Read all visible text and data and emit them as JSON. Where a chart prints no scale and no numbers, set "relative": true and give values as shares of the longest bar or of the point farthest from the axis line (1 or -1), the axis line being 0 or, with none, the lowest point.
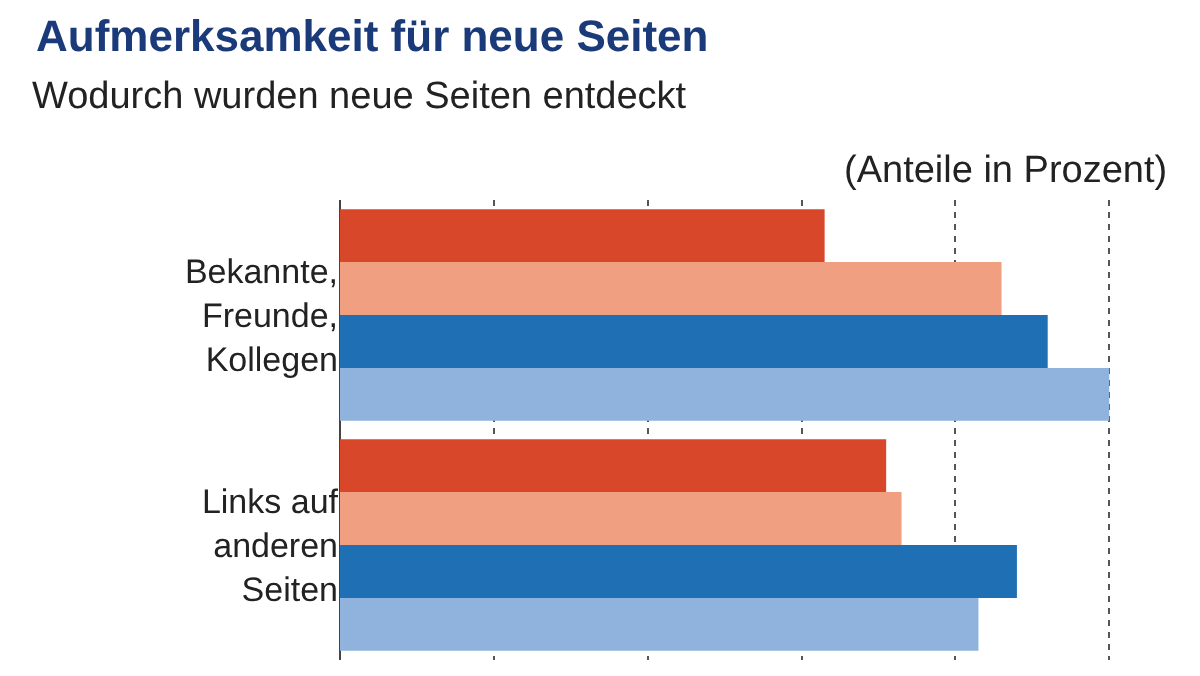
{
  "chart_data": {
    "type": "bar",
    "orientation": "horizontal",
    "relative": true,
    "title": "Aufmerksamkeit für neue Seiten",
    "subtitle": "Wodurch wurden neue Seiten entdeckt",
    "annotations": [
      "(Anteile in Prozent)"
    ],
    "categories": [
      "Bekannte,\nFreunde,\nKollegen",
      "Links auf\nanderen\nSeiten"
    ],
    "series": [
      {
        "color": "#d9472b",
        "values": [
          0.63,
          0.71
        ]
      },
      {
        "color": "#f0a080",
        "values": [
          0.86,
          0.73
        ]
      },
      {
        "color": "#1f6fb4",
        "values": [
          0.92,
          0.88
        ]
      },
      {
        "color": "#8fb3dd",
        "values": [
          1,
          0.83
        ]
      }
    ],
    "grid": "x"
  }
}
